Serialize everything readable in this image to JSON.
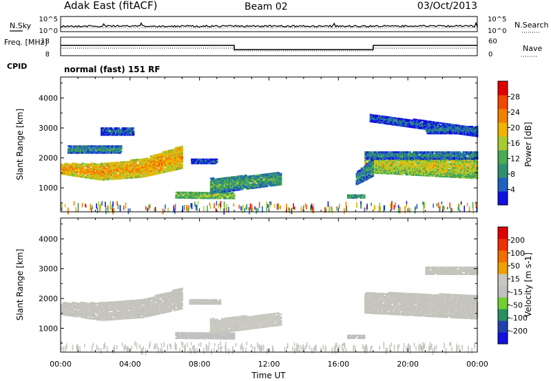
{
  "header": {
    "radar": "Adak East (fitACF)",
    "beam": "Beam 02",
    "date": "03/Oct/2013"
  },
  "colors": {
    "power": [
      "#1010e0",
      "#2060c0",
      "#2f8f6f",
      "#4aaa55",
      "#a7cc33",
      "#f0b400",
      "#f08000",
      "#f04800",
      "#e00000"
    ],
    "velocity": [
      "#e00000",
      "#f03000",
      "#f07000",
      "#f0a000",
      "#c8c8c0",
      "#c0c0c0",
      "#70d030",
      "#2a8f5f",
      "#2040b0",
      "#1010e0"
    ]
  },
  "chart_data": [
    {
      "type": "line",
      "panel": "noise",
      "ylabel_left": "N.Sky",
      "ylabel_right": "N.Search",
      "left_ticks": [
        "10^5",
        "10^0"
      ],
      "right_ticks": [
        "10^5",
        "10^0"
      ],
      "xlim": [
        0,
        24
      ],
      "series": [
        {
          "name": "N.Sky",
          "style": "solid"
        },
        {
          "name": "N.Search",
          "style": "dotted"
        }
      ]
    },
    {
      "type": "line",
      "panel": "frequency",
      "ylabel_left": "Freq. [MHz]",
      "ylabel_right": "Nave",
      "left_ticks": [
        18,
        8
      ],
      "right_ticks": [
        60,
        0
      ],
      "xlim": [
        0,
        24
      ],
      "series": [
        {
          "name": "Freq.",
          "style": "solid",
          "x": [
            0,
            10,
            10,
            18,
            18,
            24
          ],
          "y": [
            13.8,
            13.8,
            10.6,
            10.6,
            13.8,
            13.8
          ],
          "ylim": [
            6,
            20
          ]
        },
        {
          "name": "Nave",
          "style": "dotted",
          "x": [
            0,
            10,
            10,
            18,
            18,
            24
          ],
          "y": [
            23,
            23,
            12,
            12,
            23,
            23
          ],
          "ylim": [
            -8,
            68
          ]
        }
      ]
    },
    {
      "type": "text",
      "panel": "cpid",
      "label": "CPID",
      "value": "normal (fast) 151 RF"
    },
    {
      "type": "heatmap",
      "panel": "power",
      "ylabel": "Slant Range [km]",
      "xlabel": "",
      "xlim": [
        0,
        24
      ],
      "ylim": [
        200,
        4700
      ],
      "yticks": [
        1000,
        2000,
        3000,
        4000
      ],
      "colorbar": {
        "label": "Power [dB]",
        "ticks": [
          4,
          8,
          12,
          16,
          20,
          24,
          28
        ],
        "range": [
          0,
          32
        ]
      },
      "regions": [
        {
          "t0": 0.0,
          "t1": 7.0,
          "r_start": [
            1450,
            1250,
            1350,
            1650
          ],
          "r_end": [
            1800,
            1800,
            1950,
            2400
          ],
          "value": 22
        },
        {
          "t0": 0.4,
          "t1": 3.5,
          "r_start": [
            2150,
            2150
          ],
          "r_end": [
            2400,
            2400
          ],
          "value": 10
        },
        {
          "t0": 2.3,
          "t1": 4.2,
          "r_start": [
            2750,
            2750
          ],
          "r_end": [
            3000,
            3000
          ],
          "value": 7
        },
        {
          "t0": 7.5,
          "t1": 9.0,
          "r_start": [
            1800,
            1800
          ],
          "r_end": [
            1950,
            1950
          ],
          "value": 6
        },
        {
          "t0": 6.6,
          "t1": 10.0,
          "r_start": [
            650,
            630
          ],
          "r_end": [
            850,
            830
          ],
          "value": 16
        },
        {
          "t0": 8.6,
          "t1": 12.7,
          "r_start": [
            800,
            1100
          ],
          "r_end": [
            1300,
            1500
          ],
          "value": 12
        },
        {
          "t0": 17.5,
          "t1": 24.0,
          "r_start": [
            1500,
            1300
          ],
          "r_end": [
            2150,
            2000
          ],
          "value": 18
        },
        {
          "t0": 17.5,
          "t1": 24.0,
          "r_start": [
            1950,
            1950
          ],
          "r_end": [
            2200,
            2200
          ],
          "value": 9
        },
        {
          "t0": 17.8,
          "t1": 24.0,
          "r_start": [
            3200,
            2700
          ],
          "r_end": [
            3450,
            3000
          ],
          "value": 7
        },
        {
          "t0": 21.0,
          "t1": 24.0,
          "r_start": [
            2800,
            2800
          ],
          "r_end": [
            3050,
            3050
          ],
          "value": 8
        },
        {
          "t0": 17.0,
          "t1": 18.0,
          "r_start": [
            1100,
            1400
          ],
          "r_end": [
            1500,
            2000
          ],
          "value": 10
        },
        {
          "t0": 16.5,
          "t1": 17.5,
          "r_start": [
            650,
            650
          ],
          "r_end": [
            780,
            780
          ],
          "value": 12
        }
      ]
    },
    {
      "type": "heatmap",
      "panel": "velocity",
      "ylabel": "Slant Range [km]",
      "xlabel": "Time UT",
      "xlim": [
        0,
        24
      ],
      "ylim": [
        200,
        4700
      ],
      "yticks": [
        1000,
        2000,
        3000,
        4000
      ],
      "xticks": [
        "00:00",
        "04:00",
        "08:00",
        "12:00",
        "16:00",
        "20:00",
        "00:00"
      ],
      "colorbar": {
        "label": "Velocity [m s-1]",
        "ticks": [
          200,
          100,
          50,
          15,
          -15,
          -50,
          -100,
          -200
        ],
        "range": [
          -250,
          250
        ]
      },
      "regions": [
        {
          "t0": 0.0,
          "t1": 7.0,
          "r_start": [
            1450,
            1250,
            1350,
            1650
          ],
          "r_end": [
            1850,
            1850,
            1950,
            2350
          ],
          "value": 0
        },
        {
          "t0": 7.4,
          "t1": 9.2,
          "r_start": [
            1800,
            1800
          ],
          "r_end": [
            1950,
            1950
          ],
          "value": 0
        },
        {
          "t0": 6.6,
          "t1": 10.0,
          "r_start": [
            650,
            630
          ],
          "r_end": [
            850,
            830
          ],
          "value": 30
        },
        {
          "t0": 8.6,
          "t1": 12.7,
          "r_start": [
            800,
            1100
          ],
          "r_end": [
            1300,
            1500
          ],
          "value": -20
        },
        {
          "t0": 17.5,
          "t1": 24.0,
          "r_start": [
            1500,
            1300
          ],
          "r_end": [
            2200,
            2100
          ],
          "value": 0
        },
        {
          "t0": 21.0,
          "t1": 24.0,
          "r_start": [
            2800,
            2800
          ],
          "r_end": [
            3050,
            3050
          ],
          "value": 0
        },
        {
          "t0": 16.5,
          "t1": 17.5,
          "r_start": [
            650,
            650
          ],
          "r_end": [
            780,
            780
          ],
          "value": 40
        }
      ]
    }
  ]
}
